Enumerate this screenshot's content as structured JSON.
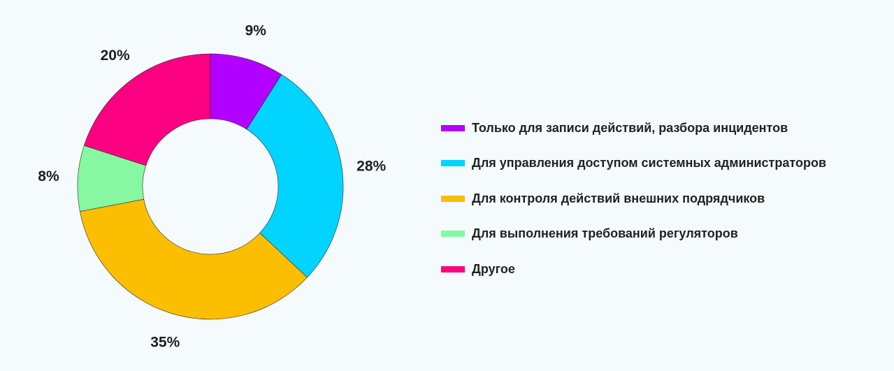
{
  "chart_data": {
    "type": "pie",
    "donut": true,
    "legend_position": "right",
    "slices": [
      {
        "name": "Только для записи действий, разбора инцидентов",
        "value": 9,
        "label": "9%",
        "color": "#b100ff"
      },
      {
        "name": "Для управления доступом системных администраторов",
        "value": 28,
        "label": "28%",
        "color": "#00d4ff"
      },
      {
        "name": "Для контроля действий внешних подрядчиков",
        "value": 35,
        "label": "35%",
        "color": "#fbbe00"
      },
      {
        "name": "Для выполнения требований регуляторов",
        "value": 8,
        "label": "8%",
        "color": "#86f8a2"
      },
      {
        "name": "Другое",
        "value": 20,
        "label": "20%",
        "color": "#fb0080"
      }
    ]
  }
}
